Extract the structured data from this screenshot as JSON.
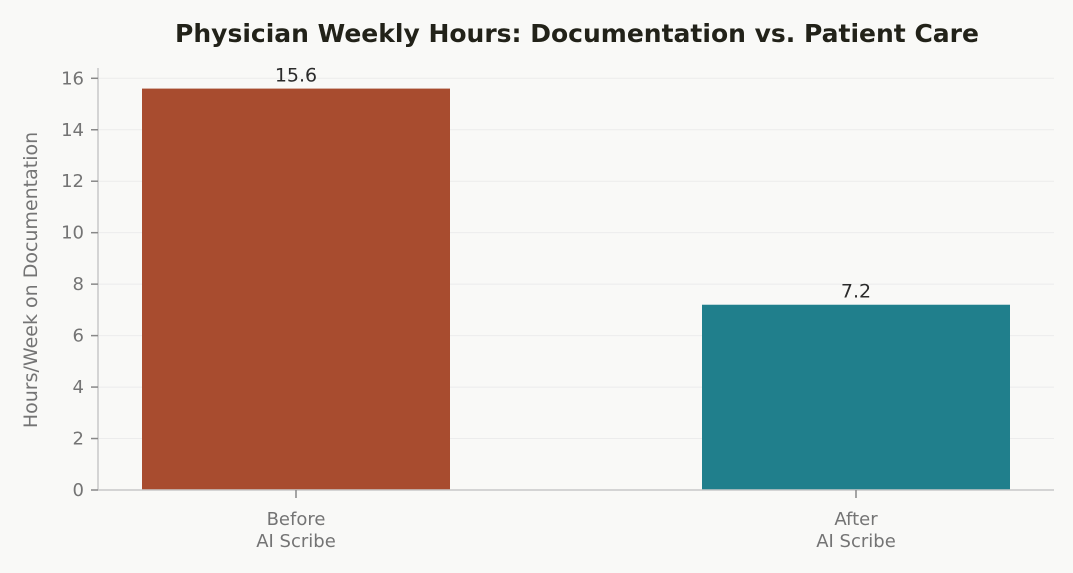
{
  "chart_data": {
    "type": "bar",
    "title": "Physician Weekly Hours: Documentation vs. Patient Care",
    "xlabel": "",
    "ylabel": "Hours/Week on Documentation",
    "categories": [
      "Before\nAI Scribe",
      "After\nAI Scribe"
    ],
    "values": [
      15.6,
      7.2
    ],
    "data_labels": [
      "15.6",
      "7.2"
    ],
    "ylim": [
      0,
      16.4
    ],
    "yticks": [
      0,
      2,
      4,
      6,
      8,
      10,
      12,
      14,
      16
    ],
    "grid": "horizontal",
    "colors": [
      "#a84c2f",
      "#207f8c"
    ]
  }
}
